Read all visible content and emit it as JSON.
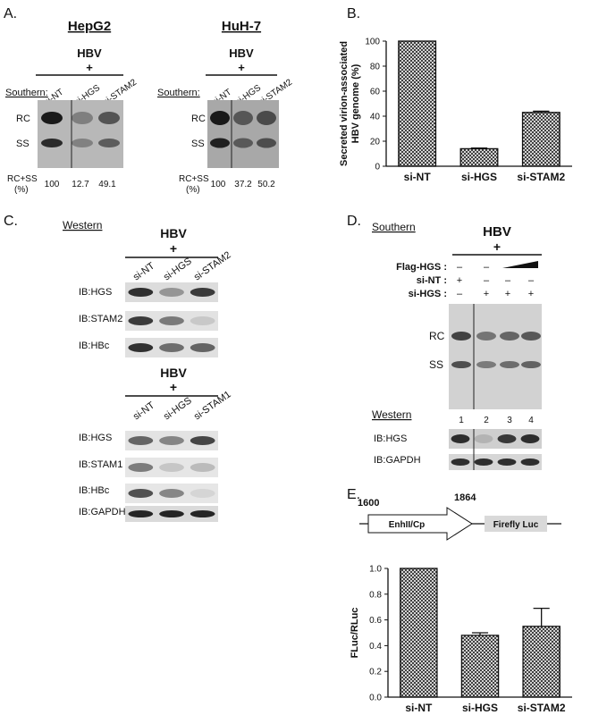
{
  "panel_labels": {
    "A": "A.",
    "B": "B.",
    "C": "C.",
    "D": "D.",
    "E": "E."
  },
  "panelA": {
    "left": {
      "cell_line": "HepG2",
      "condition": "HBV",
      "plus": "+",
      "assay": "Southern:",
      "lanes": [
        "si-NT",
        "si-HGS",
        "si-STAM2"
      ],
      "bands": [
        "RC",
        "SS"
      ],
      "quant_label_1": "RC+SS",
      "quant_label_2": "(%)",
      "quant": [
        "100",
        "12.7",
        "49.1"
      ]
    },
    "right": {
      "cell_line": "HuH-7",
      "condition": "HBV",
      "plus": "+",
      "assay": "Southern:",
      "lanes": [
        "si-NT",
        "si-HGS",
        "si-STAM2"
      ],
      "bands": [
        "RC",
        "SS"
      ],
      "quant_label_1": "RC+SS",
      "quant_label_2": "(%)",
      "quant": [
        "100",
        "37.2",
        "50.2"
      ]
    },
    "band_intensity_left": [
      1.0,
      0.13,
      0.5
    ],
    "band_intensity_right": [
      1.0,
      0.37,
      0.5
    ]
  },
  "panelC": {
    "assay": "Western",
    "block1": {
      "condition": "HBV",
      "plus": "+",
      "lanes": [
        "si-NT",
        "si-HGS",
        "si-STAM2"
      ],
      "rows": [
        "IB:HGS",
        "IB:STAM2",
        "IB:HBc"
      ]
    },
    "block2": {
      "condition": "HBV",
      "plus": "+",
      "lanes": [
        "si-NT",
        "si-HGS",
        "si-STAM1"
      ],
      "rows": [
        "IB:HGS",
        "IB:STAM1",
        "IB:HBc",
        "IB:GAPDH"
      ]
    }
  },
  "panelD": {
    "assay": "Southern",
    "condition": "HBV",
    "plus": "+",
    "rows": [
      {
        "label": "Flag-HGS :",
        "values": [
          "–",
          "–",
          "",
          ""
        ]
      },
      {
        "label": "si-NT :",
        "values": [
          "+",
          "–",
          "–",
          "–"
        ]
      },
      {
        "label": "si-HGS :",
        "values": [
          "–",
          "+",
          "+",
          "+"
        ]
      }
    ],
    "bands": [
      "RC",
      "SS"
    ],
    "lane_numbers": [
      "1",
      "2",
      "3",
      "4"
    ],
    "western": "Western",
    "western_rows": [
      "IB:HGS",
      "IB:GAPDH"
    ]
  },
  "panelE": {
    "construct": {
      "start": "1600",
      "end": "1864",
      "promoter": "EnhII/Cp",
      "reporter": "Firefly Luc"
    }
  },
  "chart_data": [
    {
      "type": "bar",
      "panel": "B",
      "categories": [
        "si-NT",
        "si-HGS",
        "si-STAM2"
      ],
      "values": [
        100,
        14,
        43
      ],
      "errors": [
        0,
        0.5,
        1
      ],
      "ylabel": "Secreted virion-associated HBV genome (%)",
      "ylabel_lines": [
        "Secreted virion-associated",
        "HBV genome (%)"
      ],
      "ylim": [
        0,
        100
      ],
      "yticks": [
        "0",
        "20",
        "40",
        "60",
        "80",
        "100"
      ],
      "grid": false
    },
    {
      "type": "bar",
      "panel": "E",
      "categories": [
        "si-NT",
        "si-HGS",
        "si-STAM2"
      ],
      "values": [
        1.0,
        0.48,
        0.55
      ],
      "errors": [
        0,
        0.02,
        0.14
      ],
      "ylabel": "FLuc/RLuc",
      "ylim": [
        0,
        1.0
      ],
      "yticks": [
        "0.0",
        "0.2",
        "0.4",
        "0.6",
        "0.8",
        "1.0"
      ],
      "grid": false
    }
  ]
}
